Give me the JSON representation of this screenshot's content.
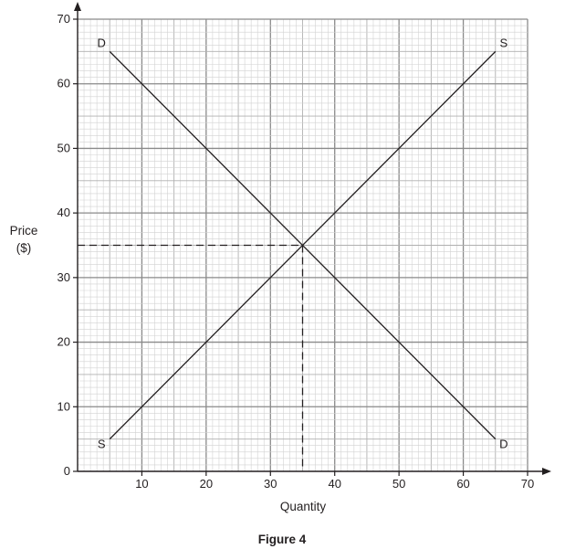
{
  "chart_data": {
    "type": "line",
    "caption": "Figure 4",
    "xlabel": "Quantity",
    "ylabel_line1": "Price",
    "ylabel_line2": "($)",
    "xlim": [
      0,
      70
    ],
    "ylim": [
      0,
      70
    ],
    "x_ticks": [
      10,
      20,
      30,
      40,
      50,
      60,
      70
    ],
    "y_ticks": [
      0,
      10,
      20,
      30,
      40,
      50,
      60,
      70
    ],
    "grid": true,
    "grid_major": 10,
    "grid_mid": 5,
    "grid_minor": 1,
    "series": [
      {
        "name": "D",
        "points": [
          [
            5,
            65
          ],
          [
            65,
            5
          ]
        ],
        "end_labels": [
          "D",
          "D"
        ]
      },
      {
        "name": "S",
        "points": [
          [
            5,
            5
          ],
          [
            65,
            65
          ]
        ],
        "end_labels": [
          "S",
          "S"
        ]
      }
    ],
    "equilibrium": {
      "x": 35,
      "y": 35
    },
    "guide_lines": "dashed"
  }
}
